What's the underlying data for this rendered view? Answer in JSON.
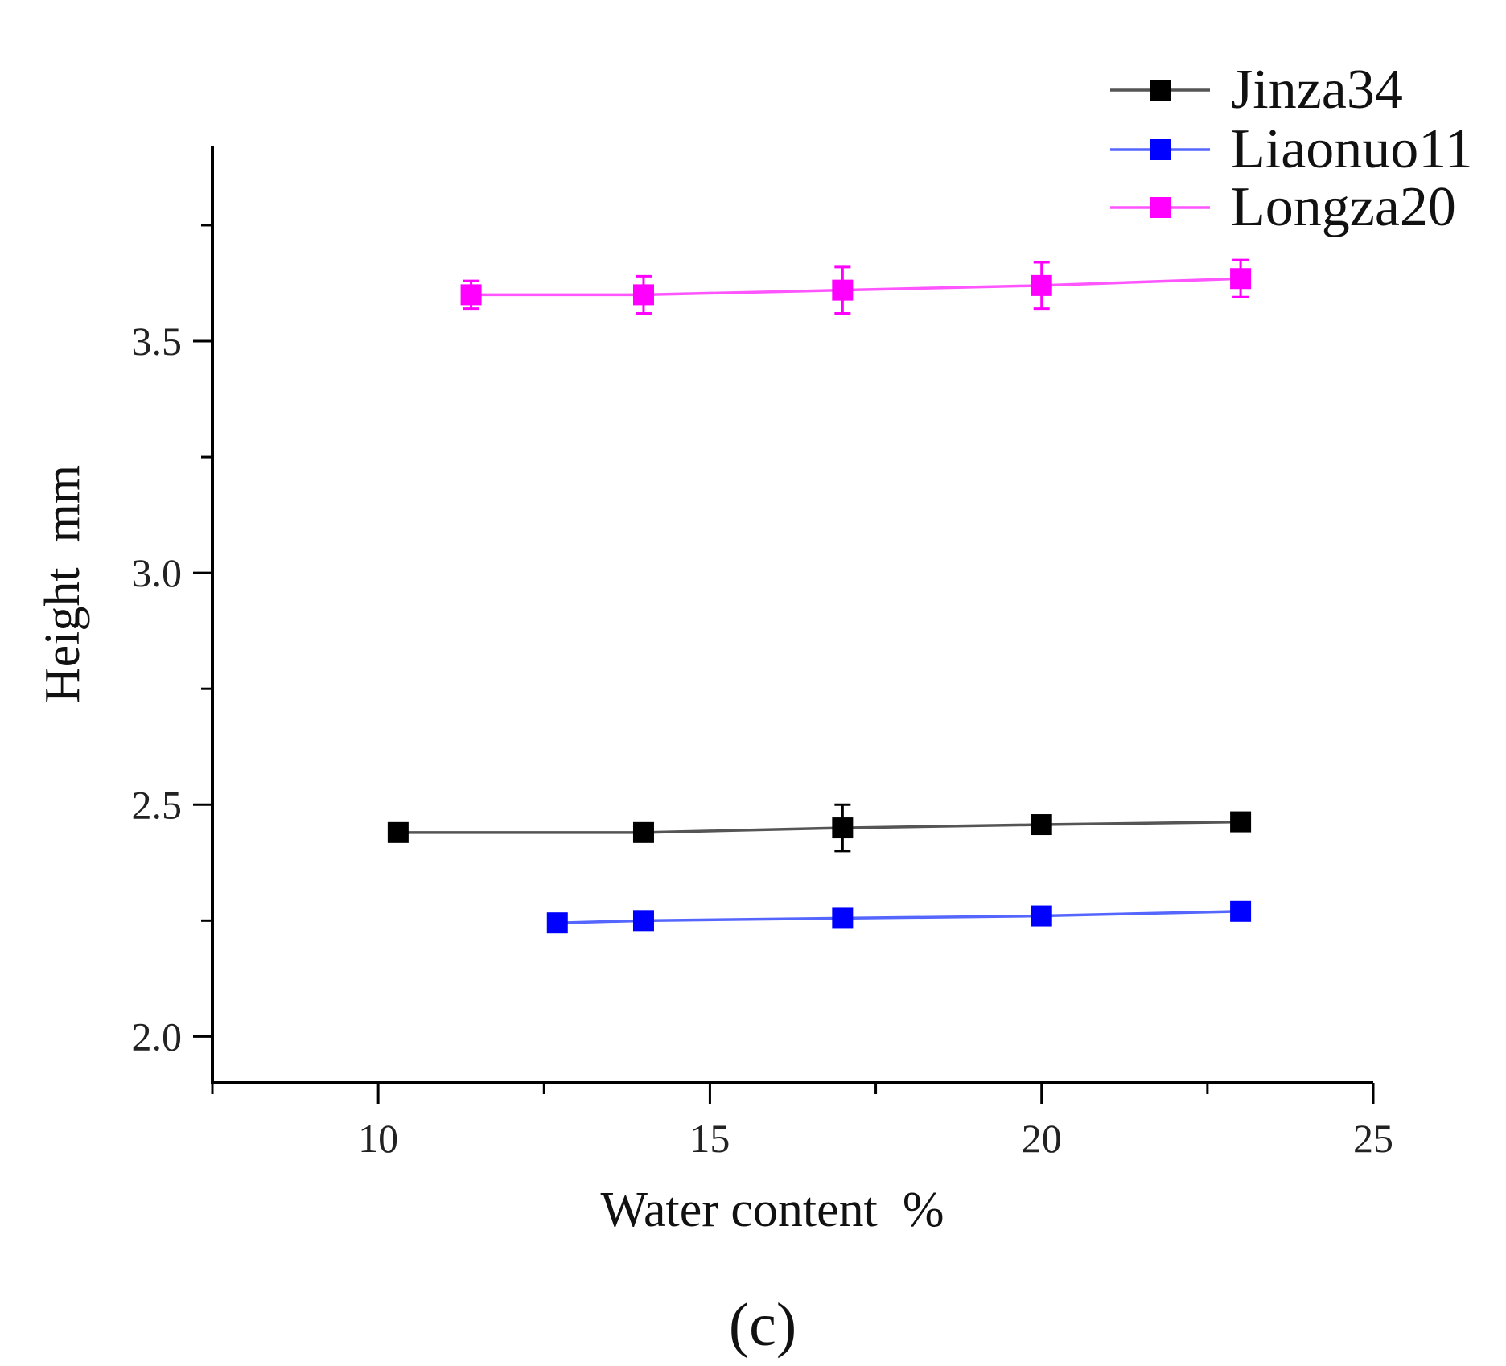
{
  "chart_data": {
    "type": "line",
    "title": "",
    "xlabel": "Water content  %",
    "ylabel": "Height  mm",
    "xlim": [
      7.5,
      25
    ],
    "ylim": [
      1.9,
      3.92
    ],
    "xticks": [
      10,
      15,
      20,
      25
    ],
    "xtick_labels": [
      "10",
      "15",
      "20",
      "25"
    ],
    "yticks": [
      2.0,
      2.5,
      3.0,
      3.5
    ],
    "ytick_labels": [
      "2.0",
      "2.5",
      "3.0",
      "3.5"
    ],
    "legend_position": "top-right",
    "grid": false,
    "panel_label": "(c)",
    "series": [
      {
        "name": "Jinza34",
        "color": "#000000",
        "line_color": "#555555",
        "x": [
          10.3,
          14.0,
          17.0,
          20.0,
          23.0
        ],
        "y": [
          2.44,
          2.44,
          2.45,
          2.457,
          2.463
        ],
        "err": [
          0.0,
          0.0,
          0.05,
          0.0,
          0.01
        ]
      },
      {
        "name": "Liaonuo11",
        "color": "#0000ff",
        "line_color": "#5566ff",
        "x": [
          12.7,
          14.0,
          17.0,
          20.0,
          23.0
        ],
        "y": [
          2.245,
          2.25,
          2.255,
          2.26,
          2.27
        ],
        "err": [
          0.0,
          0.0,
          0.0,
          0.0,
          0.0
        ]
      },
      {
        "name": "Longza20",
        "color": "#ff00ff",
        "line_color": "#ff55ff",
        "x": [
          11.4,
          14.0,
          17.0,
          20.0,
          23.0
        ],
        "y": [
          3.6,
          3.6,
          3.61,
          3.62,
          3.635
        ],
        "err": [
          0.03,
          0.04,
          0.05,
          0.05,
          0.04
        ]
      }
    ]
  }
}
